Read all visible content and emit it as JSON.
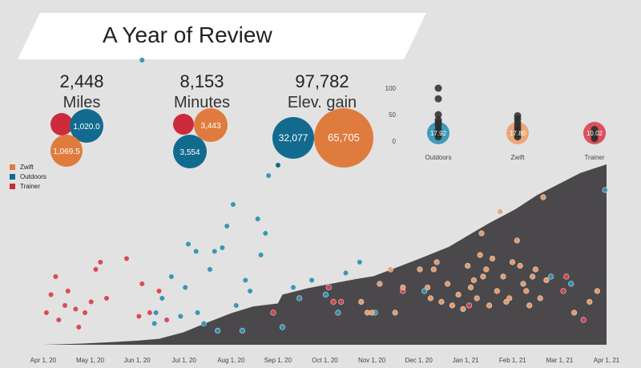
{
  "title": "A Year of Review",
  "stats": [
    {
      "value": "2,448",
      "label": "Miles",
      "bubbles": [
        {
          "type": "Trainer",
          "text": ""
        },
        {
          "type": "Outdoors",
          "text": "1,020.0"
        },
        {
          "type": "Zwift",
          "text": "1,069.5"
        }
      ]
    },
    {
      "value": "8,153",
      "label": "Minutes",
      "bubbles": [
        {
          "type": "Trainer",
          "text": ""
        },
        {
          "type": "Zwift",
          "text": "3,443"
        },
        {
          "type": "Outdoors",
          "text": "3,554"
        }
      ]
    },
    {
      "value": "97,782",
      "label": "Elev. gain",
      "bubbles": [
        {
          "type": "Outdoors",
          "text": "32,077"
        },
        {
          "type": "Zwift",
          "text": "65,705"
        }
      ]
    }
  ],
  "legend": [
    {
      "name": "Zwift",
      "color": "#e07b3e"
    },
    {
      "name": "Outdoors",
      "color": "#136a8f"
    },
    {
      "name": "Trainer",
      "color": "#cc2b3b"
    }
  ],
  "colors": {
    "Zwift": "#e07b3e",
    "Outdoors": "#136a8f",
    "Trainer": "#cc2b3b",
    "Zwift_light": "#ef9f6b",
    "Outdoors_light": "#2e94b5",
    "Trainer_light": "#d8434f",
    "area": "#4a484b"
  },
  "chart_data": [
    {
      "type": "scatter",
      "title": "",
      "y_ticks": [
        100,
        50,
        0
      ],
      "ylim": [
        0,
        110
      ],
      "categories": [
        "Outdoors",
        "Zwift",
        "Trainer"
      ],
      "category_labels": [
        "17.92",
        "17.80",
        "10.02"
      ],
      "points": [
        {
          "category": "Outdoors",
          "y": 100
        },
        {
          "category": "Outdoors",
          "y": 80
        },
        {
          "category": "Outdoors",
          "y": 50
        },
        {
          "category": "Outdoors",
          "y": 40
        },
        {
          "category": "Outdoors",
          "y": 35
        },
        {
          "category": "Outdoors",
          "y": 30
        },
        {
          "category": "Outdoors",
          "y": 22
        },
        {
          "category": "Outdoors",
          "y": 18
        },
        {
          "category": "Outdoors",
          "y": 12
        },
        {
          "category": "Outdoors",
          "y": 8
        },
        {
          "category": "Zwift",
          "y": 48
        },
        {
          "category": "Zwift",
          "y": 42
        },
        {
          "category": "Zwift",
          "y": 35
        },
        {
          "category": "Zwift",
          "y": 28
        },
        {
          "category": "Zwift",
          "y": 22
        },
        {
          "category": "Zwift",
          "y": 18
        },
        {
          "category": "Zwift",
          "y": 12
        },
        {
          "category": "Zwift",
          "y": 8
        },
        {
          "category": "Trainer",
          "y": 22
        },
        {
          "category": "Trainer",
          "y": 15
        },
        {
          "category": "Trainer",
          "y": 10
        },
        {
          "category": "Trainer",
          "y": 5
        }
      ]
    },
    {
      "type": "area",
      "title": "",
      "x_ticks": [
        "Apr 1, 20",
        "May 1, 20",
        "Jun 1, 20",
        "Jul 1, 20",
        "Aug 1, 20",
        "Sep 1, 20",
        "Oct 1, 20",
        "Nov 1, 20",
        "Dec 1, 20",
        "Jan 1, 21",
        "Feb 1, 21",
        "Mar 1, 21",
        "Apr 1, 21"
      ],
      "x_range": [
        "2020-04-01",
        "2021-04-01"
      ],
      "cumulative_miles": [
        [
          "2020-04-01",
          0
        ],
        [
          "2020-04-25",
          15
        ],
        [
          "2020-05-15",
          35
        ],
        [
          "2020-06-01",
          55
        ],
        [
          "2020-06-15",
          80
        ],
        [
          "2020-07-01",
          170
        ],
        [
          "2020-07-15",
          290
        ],
        [
          "2020-08-01",
          430
        ],
        [
          "2020-08-15",
          520
        ],
        [
          "2020-08-31",
          560
        ],
        [
          "2020-09-03",
          680
        ],
        [
          "2020-09-20",
          770
        ],
        [
          "2020-10-05",
          830
        ],
        [
          "2020-10-20",
          890
        ],
        [
          "2020-11-01",
          930
        ],
        [
          "2020-11-15",
          1040
        ],
        [
          "2020-12-01",
          1170
        ],
        [
          "2020-12-20",
          1330
        ],
        [
          "2021-01-01",
          1480
        ],
        [
          "2021-01-15",
          1650
        ],
        [
          "2021-02-01",
          1840
        ],
        [
          "2021-02-15",
          2030
        ],
        [
          "2021-03-01",
          2180
        ],
        [
          "2021-03-15",
          2330
        ],
        [
          "2021-04-01",
          2448
        ]
      ],
      "rides": [
        {
          "date": "2020-04-03",
          "type": "Trainer",
          "v": 8
        },
        {
          "date": "2020-04-06",
          "type": "Trainer",
          "v": 13
        },
        {
          "date": "2020-04-09",
          "type": "Trainer",
          "v": 18
        },
        {
          "date": "2020-04-11",
          "type": "Trainer",
          "v": 6
        },
        {
          "date": "2020-04-15",
          "type": "Trainer",
          "v": 10
        },
        {
          "date": "2020-04-17",
          "type": "Trainer",
          "v": 14
        },
        {
          "date": "2020-04-22",
          "type": "Trainer",
          "v": 9
        },
        {
          "date": "2020-04-24",
          "type": "Trainer",
          "v": 4
        },
        {
          "date": "2020-04-28",
          "type": "Trainer",
          "v": 8
        },
        {
          "date": "2020-05-02",
          "type": "Trainer",
          "v": 11
        },
        {
          "date": "2020-05-05",
          "type": "Trainer",
          "v": 20
        },
        {
          "date": "2020-05-08",
          "type": "Trainer",
          "v": 22
        },
        {
          "date": "2020-05-12",
          "type": "Trainer",
          "v": 12
        },
        {
          "date": "2020-05-25",
          "type": "Trainer",
          "v": 23
        },
        {
          "date": "2020-06-02",
          "type": "Trainer",
          "v": 7
        },
        {
          "date": "2020-06-04",
          "type": "Trainer",
          "v": 16
        },
        {
          "date": "2020-06-09",
          "type": "Trainer",
          "v": 8
        },
        {
          "date": "2020-06-15",
          "type": "Trainer",
          "v": 14
        },
        {
          "date": "2020-06-20",
          "type": "Trainer",
          "v": 6
        },
        {
          "date": "2020-06-04",
          "type": "Outdoors",
          "v": 78
        },
        {
          "date": "2020-06-12",
          "type": "Outdoors",
          "v": 5
        },
        {
          "date": "2020-06-13",
          "type": "Outdoors",
          "v": 8
        },
        {
          "date": "2020-06-17",
          "type": "Outdoors",
          "v": 12
        },
        {
          "date": "2020-06-23",
          "type": "Outdoors",
          "v": 18
        },
        {
          "date": "2020-06-29",
          "type": "Outdoors",
          "v": 7
        },
        {
          "date": "2020-07-02",
          "type": "Outdoors",
          "v": 15
        },
        {
          "date": "2020-07-04",
          "type": "Outdoors",
          "v": 27
        },
        {
          "date": "2020-07-09",
          "type": "Outdoors",
          "v": 25
        },
        {
          "date": "2020-07-10",
          "type": "Outdoors",
          "v": 8
        },
        {
          "date": "2020-07-14",
          "type": "Outdoors",
          "v": 5
        },
        {
          "date": "2020-07-18",
          "type": "Outdoors",
          "v": 20
        },
        {
          "date": "2020-07-21",
          "type": "Outdoors",
          "v": 25
        },
        {
          "date": "2020-07-23",
          "type": "Outdoors",
          "v": 3
        },
        {
          "date": "2020-07-26",
          "type": "Outdoors",
          "v": 26
        },
        {
          "date": "2020-07-29",
          "type": "Outdoors",
          "v": 32
        },
        {
          "date": "2020-08-02",
          "type": "Outdoors",
          "v": 38
        },
        {
          "date": "2020-08-04",
          "type": "Outdoors",
          "v": 10
        },
        {
          "date": "2020-08-08",
          "type": "Outdoors",
          "v": 3
        },
        {
          "date": "2020-08-10",
          "type": "Outdoors",
          "v": 17
        },
        {
          "date": "2020-08-13",
          "type": "Outdoors",
          "v": 14
        },
        {
          "date": "2020-08-18",
          "type": "Outdoors",
          "v": 34
        },
        {
          "date": "2020-08-20",
          "type": "Outdoors",
          "v": 24
        },
        {
          "date": "2020-08-23",
          "type": "Outdoors",
          "v": 30
        },
        {
          "date": "2020-08-25",
          "type": "Outdoors",
          "v": 46
        },
        {
          "date": "2020-09-03",
          "type": "Outdoors",
          "v": 4
        },
        {
          "date": "2020-09-10",
          "type": "Outdoors",
          "v": 15
        },
        {
          "date": "2020-09-14",
          "type": "Outdoors",
          "v": 12
        },
        {
          "date": "2020-09-22",
          "type": "Outdoors",
          "v": 17
        },
        {
          "date": "2020-10-01",
          "type": "Outdoors",
          "v": 13
        },
        {
          "date": "2020-10-09",
          "type": "Outdoors",
          "v": 8
        },
        {
          "date": "2020-10-14",
          "type": "Outdoors",
          "v": 19
        },
        {
          "date": "2020-10-23",
          "type": "Outdoors",
          "v": 22
        },
        {
          "date": "2020-11-02",
          "type": "Outdoors",
          "v": 8
        },
        {
          "date": "2020-12-04",
          "type": "Outdoors",
          "v": 14
        },
        {
          "date": "2021-02-24",
          "type": "Outdoors",
          "v": 18
        },
        {
          "date": "2021-03-09",
          "type": "Outdoors",
          "v": 16
        },
        {
          "date": "2021-03-31",
          "type": "Outdoors",
          "v": 42
        },
        {
          "date": "2020-08-28",
          "type": "Trainer",
          "v": 8
        },
        {
          "date": "2020-10-03",
          "type": "Trainer",
          "v": 15
        },
        {
          "date": "2020-10-06",
          "type": "Trainer",
          "v": 11
        },
        {
          "date": "2020-10-11",
          "type": "Trainer",
          "v": 11
        },
        {
          "date": "2020-11-20",
          "type": "Trainer",
          "v": 14
        },
        {
          "date": "2021-01-02",
          "type": "Trainer",
          "v": 10
        },
        {
          "date": "2021-03-04",
          "type": "Trainer",
          "v": 14
        },
        {
          "date": "2021-03-06",
          "type": "Trainer",
          "v": 18
        },
        {
          "date": "2021-03-17",
          "type": "Trainer",
          "v": 6
        },
        {
          "date": "2020-10-24",
          "type": "Zwift",
          "v": 11
        },
        {
          "date": "2020-10-28",
          "type": "Zwift",
          "v": 8
        },
        {
          "date": "2020-10-31",
          "type": "Zwift",
          "v": 8
        },
        {
          "date": "2020-11-05",
          "type": "Zwift",
          "v": 16
        },
        {
          "date": "2020-11-12",
          "type": "Zwift",
          "v": 20
        },
        {
          "date": "2020-11-15",
          "type": "Zwift",
          "v": 8
        },
        {
          "date": "2020-11-20",
          "type": "Zwift",
          "v": 15
        },
        {
          "date": "2020-12-01",
          "type": "Zwift",
          "v": 20
        },
        {
          "date": "2020-12-06",
          "type": "Zwift",
          "v": 15
        },
        {
          "date": "2020-12-08",
          "type": "Zwift",
          "v": 12
        },
        {
          "date": "2020-12-10",
          "type": "Zwift",
          "v": 20
        },
        {
          "date": "2020-12-12",
          "type": "Zwift",
          "v": 22
        },
        {
          "date": "2020-12-15",
          "type": "Zwift",
          "v": 11
        },
        {
          "date": "2020-12-19",
          "type": "Zwift",
          "v": 16
        },
        {
          "date": "2020-12-22",
          "type": "Zwift",
          "v": 10
        },
        {
          "date": "2020-12-26",
          "type": "Zwift",
          "v": 13
        },
        {
          "date": "2020-12-29",
          "type": "Zwift",
          "v": 9
        },
        {
          "date": "2021-01-03",
          "type": "Zwift",
          "v": 15
        },
        {
          "date": "2021-01-05",
          "type": "Zwift",
          "v": 17
        },
        {
          "date": "2021-01-07",
          "type": "Zwift",
          "v": 12
        },
        {
          "date": "2021-01-09",
          "type": "Zwift",
          "v": 24
        },
        {
          "date": "2021-01-11",
          "type": "Zwift",
          "v": 18
        },
        {
          "date": "2021-01-13",
          "type": "Zwift",
          "v": 20
        },
        {
          "date": "2021-01-15",
          "type": "Zwift",
          "v": 10
        },
        {
          "date": "2021-01-17",
          "type": "Zwift",
          "v": 23
        },
        {
          "date": "2021-01-20",
          "type": "Zwift",
          "v": 14
        },
        {
          "date": "2021-01-22",
          "type": "Zwift",
          "v": 36
        },
        {
          "date": "2021-01-24",
          "type": "Zwift",
          "v": 18
        },
        {
          "date": "2021-01-26",
          "type": "Zwift",
          "v": 11
        },
        {
          "date": "2021-01-28",
          "type": "Zwift",
          "v": 12
        },
        {
          "date": "2021-01-30",
          "type": "Zwift",
          "v": 22
        },
        {
          "date": "2021-02-02",
          "type": "Zwift",
          "v": 28
        },
        {
          "date": "2021-02-04",
          "type": "Zwift",
          "v": 21
        },
        {
          "date": "2021-02-06",
          "type": "Zwift",
          "v": 16
        },
        {
          "date": "2021-02-08",
          "type": "Zwift",
          "v": 14
        },
        {
          "date": "2021-02-10",
          "type": "Zwift",
          "v": 10
        },
        {
          "date": "2021-02-12",
          "type": "Zwift",
          "v": 18
        },
        {
          "date": "2021-02-14",
          "type": "Zwift",
          "v": 20
        },
        {
          "date": "2021-02-17",
          "type": "Zwift",
          "v": 12
        },
        {
          "date": "2021-02-19",
          "type": "Zwift",
          "v": 40
        },
        {
          "date": "2021-02-21",
          "type": "Zwift",
          "v": 17
        },
        {
          "date": "2021-03-11",
          "type": "Zwift",
          "v": 8
        },
        {
          "date": "2021-03-21",
          "type": "Zwift",
          "v": 11
        },
        {
          "date": "2021-03-26",
          "type": "Zwift",
          "v": 14
        },
        {
          "date": "2021-01-10",
          "type": "Zwift",
          "v": 30
        },
        {
          "date": "2021-01-01",
          "type": "Zwift",
          "v": 21
        }
      ]
    }
  ]
}
